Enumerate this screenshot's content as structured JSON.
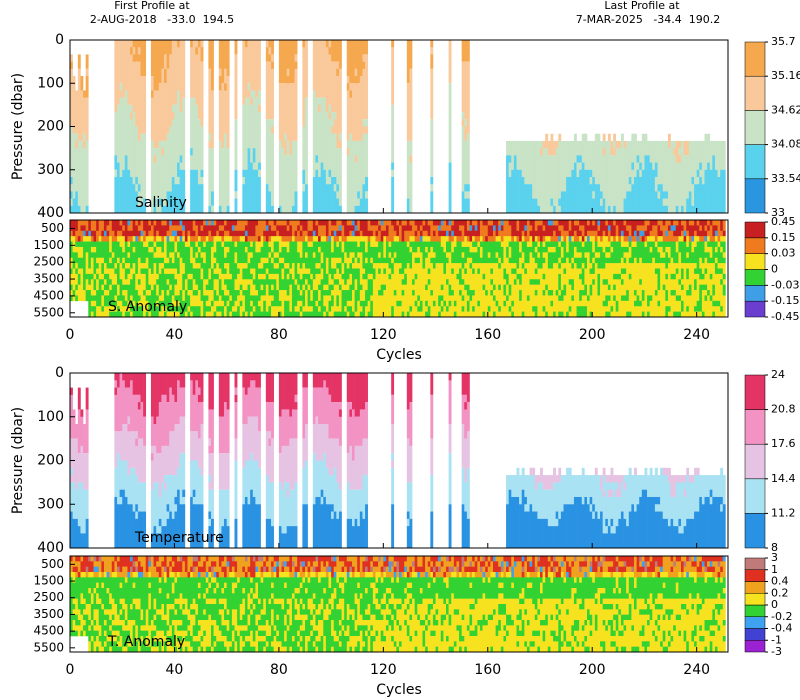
{
  "header": {
    "first_label": "First Profile at",
    "first_info": "2-AUG-2018   -33.0  194.5",
    "last_label": "Last Profile at",
    "last_info": "7-MAR-2025   -34.4  190.2"
  },
  "chart_data": [
    {
      "type": "section",
      "label": "Salinity",
      "ylabel": "Pressure (dbar)",
      "xlim": [
        0,
        252
      ],
      "xticks": [
        0,
        40,
        80,
        120,
        160,
        200,
        240
      ],
      "ylim": [
        400,
        0
      ],
      "yticks": [
        0,
        100,
        200,
        300,
        400
      ],
      "colorbar": {
        "ticks": [
          33,
          33.54,
          34.08,
          34.62,
          35.16,
          35.7
        ],
        "colors": [
          "#2a96e0",
          "#5ad2ee",
          "#c9e3c6",
          "#f9c99b",
          "#f5a84e"
        ]
      }
    },
    {
      "type": "anomaly",
      "label": "S. Anomaly",
      "xlabel": "Cycles",
      "xlim": [
        0,
        252
      ],
      "xticks": [
        0,
        40,
        80,
        120,
        160,
        200,
        240
      ],
      "ylim": [
        5750,
        0
      ],
      "yticks": [
        500,
        1500,
        2500,
        3500,
        4500,
        5500
      ],
      "colorbar": {
        "ticks": [
          -0.45,
          -0.15,
          -0.03,
          0,
          0.03,
          0.15,
          0.45
        ],
        "colors": [
          "#6a3fd0",
          "#3f9fe6",
          "#33d233",
          "#f6e21e",
          "#f07a1e",
          "#c82020"
        ]
      }
    },
    {
      "type": "section",
      "label": "Temperature",
      "ylabel": "Pressure (dbar)",
      "xlim": [
        0,
        252
      ],
      "xticks": [
        0,
        40,
        80,
        120,
        160,
        200,
        240
      ],
      "ylim": [
        400,
        0
      ],
      "yticks": [
        0,
        100,
        200,
        300,
        400
      ],
      "colorbar": {
        "ticks": [
          8,
          11.2,
          14.4,
          17.6,
          20.8,
          24
        ],
        "colors": [
          "#2a92e2",
          "#a9e2f2",
          "#e6c3e2",
          "#f293c4",
          "#e43466"
        ]
      }
    },
    {
      "type": "anomaly",
      "label": "T. Anomaly",
      "xlabel": "Cycles",
      "xlim": [
        0,
        252
      ],
      "xticks": [
        0,
        40,
        80,
        120,
        160,
        200,
        240
      ],
      "ylim": [
        5750,
        0
      ],
      "yticks": [
        500,
        1500,
        2500,
        3500,
        4500,
        5500
      ],
      "colorbar": {
        "ticks": [
          -3,
          -1,
          -0.4,
          -0.2,
          0,
          0.2,
          0.4,
          1,
          3
        ],
        "colors": [
          "#9a22d2",
          "#4242d2",
          "#3fa2f0",
          "#33d233",
          "#f6e21e",
          "#f0a21e",
          "#e03020",
          "#c07a7a"
        ]
      }
    }
  ]
}
